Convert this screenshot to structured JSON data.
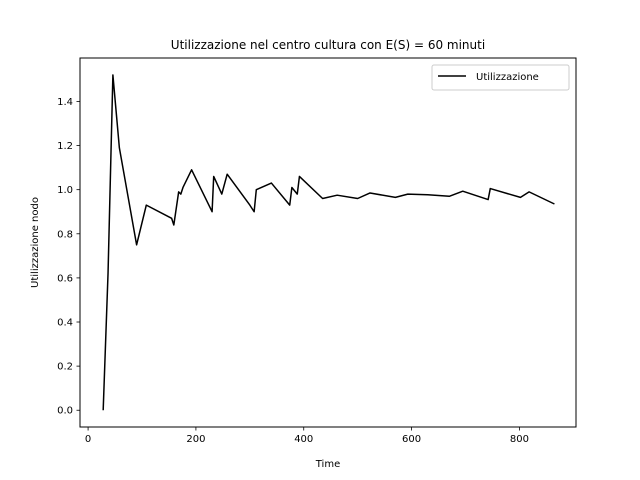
{
  "chart_data": {
    "type": "line",
    "title": "Utilizzazione nel centro cultura con E(S) = 60 minuti",
    "xlabel": "Time",
    "ylabel": "Utilizzazione nodo",
    "xlim": [
      -15,
      905
    ],
    "ylim": [
      -0.076,
      1.597
    ],
    "xticks": [
      0,
      200,
      400,
      600,
      800
    ],
    "xtick_labels": [
      "0",
      "200",
      "400",
      "600",
      "800"
    ],
    "yticks": [
      0.0,
      0.2,
      0.4,
      0.6,
      0.8,
      1.0,
      1.2,
      1.4
    ],
    "ytick_labels": [
      "0.0",
      "0.2",
      "0.4",
      "0.6",
      "0.8",
      "1.0",
      "1.2",
      "1.4"
    ],
    "legend_position": "top-right",
    "grid": false,
    "series": [
      {
        "name": "Utilizzazione",
        "color": "#000000",
        "x": [
          28,
          37,
          46,
          58,
          90,
          108,
          155,
          159,
          168,
          172,
          176,
          192,
          230,
          233,
          248,
          258,
          300,
          308,
          312,
          340,
          374,
          378,
          388,
          392,
          435,
          462,
          500,
          523,
          570,
          593,
          630,
          670,
          695,
          742,
          746,
          802,
          818,
          865
        ],
        "y": [
          0.0,
          0.62,
          1.52,
          1.19,
          0.75,
          0.93,
          0.87,
          0.84,
          0.99,
          0.98,
          1.01,
          1.09,
          0.9,
          1.06,
          0.98,
          1.07,
          0.93,
          0.9,
          1.0,
          1.03,
          0.93,
          1.01,
          0.98,
          1.06,
          0.96,
          0.975,
          0.96,
          0.985,
          0.965,
          0.98,
          0.977,
          0.97,
          0.993,
          0.955,
          1.005,
          0.965,
          0.99,
          0.935
        ]
      }
    ]
  }
}
